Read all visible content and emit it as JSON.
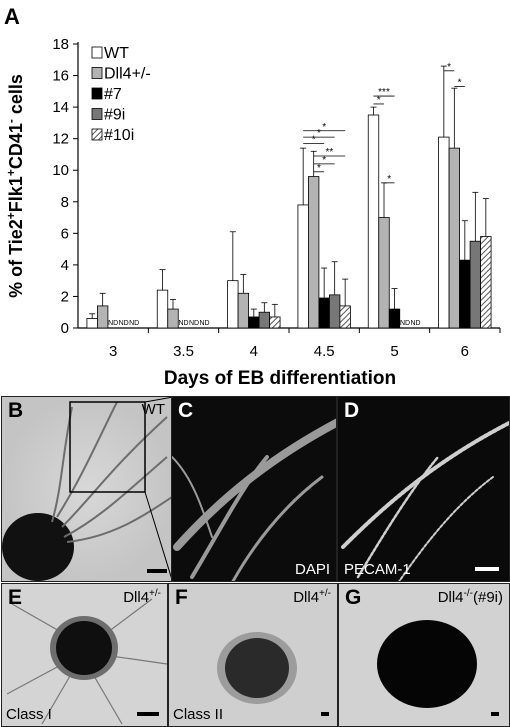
{
  "figure": {
    "panel_a_letter": "A",
    "panels": {
      "b": {
        "letter": "B",
        "tag": "WT"
      },
      "c": {
        "letter": "C",
        "tag": "DAPI"
      },
      "d": {
        "letter": "D",
        "tag": "PECAM-1"
      },
      "e": {
        "letter": "E",
        "tag": "Dll4",
        "tag_sup": "+/-",
        "class_label": "Class I"
      },
      "f": {
        "letter": "F",
        "tag": "Dll4",
        "tag_sup": "+/-",
        "class_label": "Class II"
      },
      "g": {
        "letter": "G",
        "tag": "Dll4",
        "tag_sup": "-/-",
        "tag_suffix": "(#9i)"
      }
    }
  },
  "chart_data": {
    "type": "bar",
    "title": "",
    "xlabel": "Days of EB differentiation",
    "ylabel": "% of Tie2+Flk1+CD41- cells",
    "ylabel_parts": {
      "p1": "% of Tie2",
      "s1": "+",
      "p2": "Flk1",
      "s2": "+",
      "p3": "CD41",
      "s3": "-",
      "p4": " cells"
    },
    "ylim": [
      0,
      18
    ],
    "yticks": [
      0,
      2,
      4,
      6,
      8,
      10,
      12,
      14,
      16,
      18
    ],
    "categories": [
      "3",
      "3.5",
      "4",
      "4.5",
      "5",
      "6"
    ],
    "legend_position": "top-left",
    "nd_label": "ND",
    "series": [
      {
        "name": "WT",
        "color": "#ffffff",
        "pattern": "none",
        "values": [
          0.6,
          2.4,
          3.0,
          7.8,
          13.5,
          12.1
        ],
        "errors": [
          0.3,
          1.3,
          3.1,
          3.6,
          0.5,
          4.5
        ]
      },
      {
        "name": "Dll4+/-",
        "color": "#b3b3b3",
        "pattern": "none",
        "values": [
          1.4,
          1.2,
          2.2,
          9.6,
          7.0,
          11.4
        ],
        "errors": [
          0.8,
          0.6,
          1.2,
          1.6,
          2.2,
          3.8
        ]
      },
      {
        "name": "#7",
        "color": "#000000",
        "pattern": "none",
        "values": [
          null,
          null,
          0.7,
          1.9,
          1.2,
          4.3
        ],
        "errors": [
          0,
          0,
          0.5,
          1.9,
          1.3,
          2.5
        ]
      },
      {
        "name": "#9i",
        "color": "#777777",
        "pattern": "none",
        "values": [
          null,
          null,
          1.0,
          2.1,
          null,
          5.5
        ],
        "errors": [
          0,
          0,
          0.6,
          2.1,
          0,
          3.1
        ]
      },
      {
        "name": "#10i",
        "color": "#e6e6e6",
        "pattern": "hatch",
        "values": [
          null,
          null,
          0.7,
          1.4,
          null,
          5.8
        ],
        "errors": [
          0,
          0,
          0.8,
          1.7,
          0,
          2.4
        ]
      }
    ],
    "significance": [
      {
        "category": "4.5",
        "from": 0,
        "to": 2,
        "label": "*",
        "level": 11.7
      },
      {
        "category": "4.5",
        "from": 0,
        "to": 3,
        "label": "*",
        "level": 12.1
      },
      {
        "category": "4.5",
        "from": 0,
        "to": 4,
        "label": "*",
        "level": 12.5
      },
      {
        "category": "4.5",
        "from": 1,
        "to": 2,
        "label": "*",
        "level": 9.9
      },
      {
        "category": "4.5",
        "from": 1,
        "to": 3,
        "label": "*",
        "level": 10.4
      },
      {
        "category": "4.5",
        "from": 1,
        "to": 4,
        "label": "**",
        "level": 10.9
      },
      {
        "category": "5",
        "from": 0,
        "to": 1,
        "label": "*",
        "level": 14.2
      },
      {
        "category": "5",
        "from": 0,
        "to": 2,
        "label": "***",
        "level": 14.7
      },
      {
        "category": "5",
        "from": 1,
        "to": 2,
        "label": "*",
        "level": 9.2
      },
      {
        "category": "6",
        "from": 0,
        "to": 1,
        "label": "*",
        "level": 16.3
      },
      {
        "category": "6",
        "from": 1,
        "to": 2,
        "label": "*",
        "level": 15.3
      }
    ]
  }
}
